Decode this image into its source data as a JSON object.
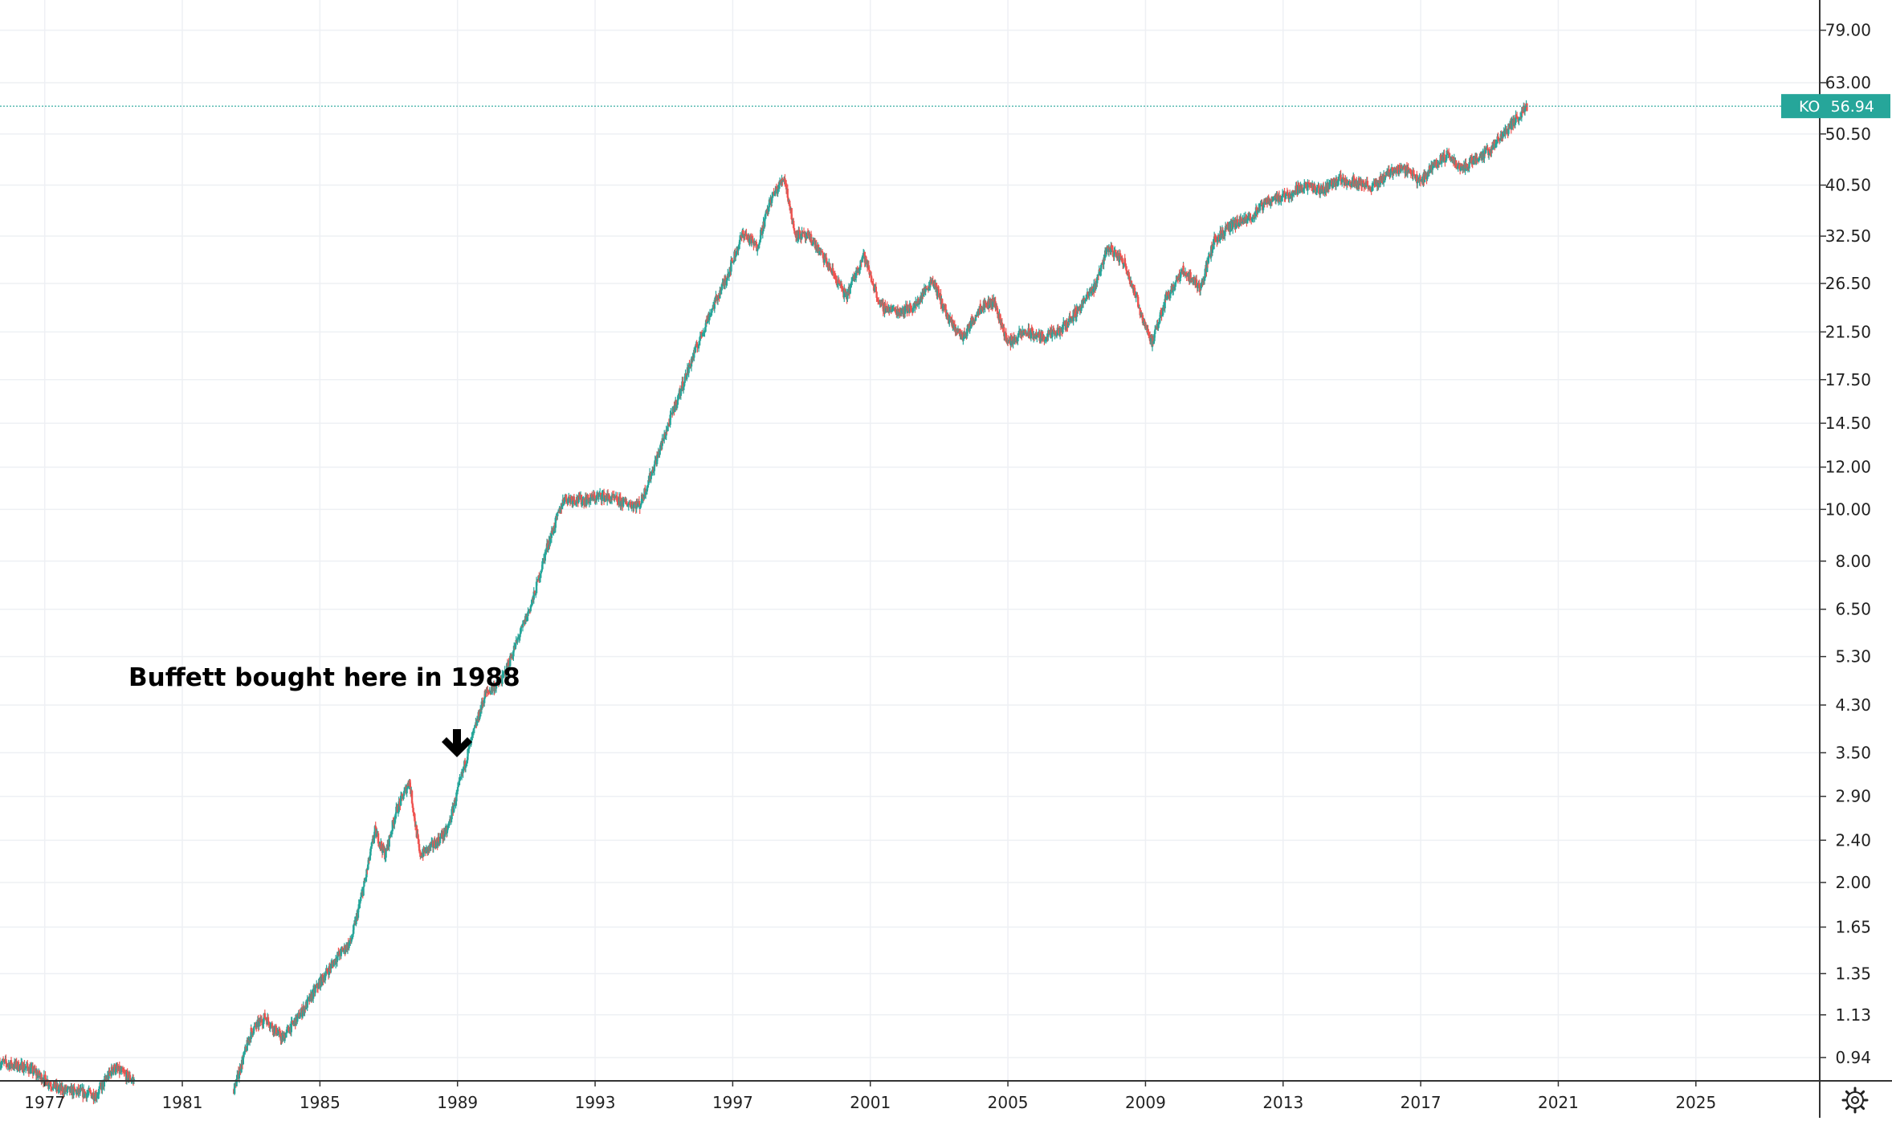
{
  "chart_data": {
    "type": "candlestick",
    "symbol": "KO",
    "last_price": "56.94",
    "scale": "log",
    "grid": true,
    "ylim": [
      0.85,
      90
    ],
    "xlim": [
      1975.7,
      2028.6
    ],
    "y_ticks": [
      "79.00",
      "63.00",
      "50.50",
      "40.50",
      "32.50",
      "26.50",
      "21.50",
      "17.50",
      "14.50",
      "12.00",
      "10.00",
      "8.00",
      "6.50",
      "5.30",
      "4.30",
      "3.50",
      "2.90",
      "2.40",
      "2.00",
      "1.65",
      "1.35",
      "1.13",
      "0.94"
    ],
    "x_ticks": [
      "1977",
      "1981",
      "1985",
      "1989",
      "1993",
      "1997",
      "2001",
      "2005",
      "2009",
      "2013",
      "2017",
      "2021",
      "2025"
    ],
    "annotation": "Buffett bought here in 1988",
    "price_path": [
      [
        1975.7,
        0.92
      ],
      [
        1976.5,
        0.9
      ],
      [
        1977.4,
        0.82
      ],
      [
        1978.5,
        0.8
      ],
      [
        1979.0,
        0.9
      ],
      [
        1979.6,
        0.85
      ],
      [
        1982.5,
        0.82
      ],
      [
        1983.0,
        1.05
      ],
      [
        1983.4,
        1.12
      ],
      [
        1983.9,
        1.02
      ],
      [
        1984.5,
        1.15
      ],
      [
        1985.0,
        1.3
      ],
      [
        1985.5,
        1.45
      ],
      [
        1985.9,
        1.55
      ],
      [
        1986.3,
        2.0
      ],
      [
        1986.6,
        2.5
      ],
      [
        1986.9,
        2.25
      ],
      [
        1987.2,
        2.7
      ],
      [
        1987.6,
        3.1
      ],
      [
        1987.9,
        2.25
      ],
      [
        1988.3,
        2.35
      ],
      [
        1988.7,
        2.5
      ],
      [
        1989.3,
        3.5
      ],
      [
        1989.8,
        4.5
      ],
      [
        1990.3,
        4.8
      ],
      [
        1990.8,
        5.8
      ],
      [
        1991.2,
        6.8
      ],
      [
        1991.6,
        8.5
      ],
      [
        1992.1,
        10.5
      ],
      [
        1992.7,
        10.4
      ],
      [
        1993.2,
        10.6
      ],
      [
        1993.8,
        10.3
      ],
      [
        1994.3,
        10.2
      ],
      [
        1994.8,
        12.5
      ],
      [
        1995.3,
        15.5
      ],
      [
        1995.8,
        19.0
      ],
      [
        1996.3,
        23.0
      ],
      [
        1996.8,
        27.0
      ],
      [
        1997.3,
        33.0
      ],
      [
        1997.7,
        31.0
      ],
      [
        1998.1,
        38.0
      ],
      [
        1998.5,
        42.0
      ],
      [
        1998.8,
        33.0
      ],
      [
        1999.3,
        32.0
      ],
      [
        1999.8,
        28.5
      ],
      [
        2000.3,
        25.0
      ],
      [
        2000.8,
        30.0
      ],
      [
        2001.3,
        24.0
      ],
      [
        2001.8,
        23.5
      ],
      [
        2002.3,
        24.0
      ],
      [
        2002.8,
        27.0
      ],
      [
        2003.3,
        22.5
      ],
      [
        2003.7,
        21.0
      ],
      [
        2004.2,
        24.0
      ],
      [
        2004.6,
        24.5
      ],
      [
        2005.0,
        20.5
      ],
      [
        2005.5,
        21.5
      ],
      [
        2006.0,
        21.0
      ],
      [
        2006.5,
        21.5
      ],
      [
        2007.0,
        23.5
      ],
      [
        2007.5,
        26.0
      ],
      [
        2007.9,
        31.0
      ],
      [
        2008.4,
        29.0
      ],
      [
        2008.9,
        23.0
      ],
      [
        2009.2,
        20.5
      ],
      [
        2009.6,
        25.0
      ],
      [
        2010.1,
        28.0
      ],
      [
        2010.6,
        26.0
      ],
      [
        2011.0,
        32.0
      ],
      [
        2011.5,
        34.0
      ],
      [
        2012.0,
        35.0
      ],
      [
        2012.6,
        38.0
      ],
      [
        2013.2,
        39.0
      ],
      [
        2013.6,
        40.5
      ],
      [
        2014.1,
        39.5
      ],
      [
        2014.6,
        41.5
      ],
      [
        2015.2,
        41.0
      ],
      [
        2015.6,
        40.0
      ],
      [
        2016.1,
        43.0
      ],
      [
        2016.6,
        43.5
      ],
      [
        2017.0,
        41.0
      ],
      [
        2017.4,
        44.5
      ],
      [
        2017.8,
        46.0
      ],
      [
        2018.2,
        43.5
      ],
      [
        2018.6,
        45.5
      ],
      [
        2019.0,
        47.0
      ],
      [
        2019.4,
        50.5
      ],
      [
        2019.8,
        54.0
      ],
      [
        2020.1,
        56.94
      ]
    ]
  }
}
